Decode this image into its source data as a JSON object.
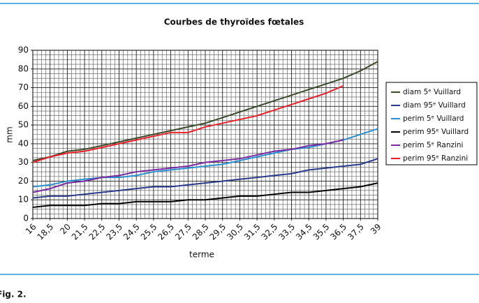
{
  "chart_data": {
    "type": "line",
    "title": "Courbes de thyroïdes fœtales",
    "x_label": "terme",
    "y_label": "mm",
    "caption": "Fig. 2.",
    "categories": [
      "16",
      "18,5",
      "20",
      "21,5",
      "22,5",
      "23,5",
      "24,5",
      "25,5",
      "26,5",
      "27,5",
      "28,5",
      "29,5",
      "30,5",
      "31,5",
      "32,5",
      "33,5",
      "34,5",
      "35,5",
      "36,5",
      "37,5",
      "39"
    ],
    "ylim": [
      0,
      90
    ],
    "yticks": [
      0,
      10,
      20,
      30,
      40,
      50,
      60,
      70,
      80,
      90
    ],
    "grid": true,
    "legend": "right",
    "series": [
      {
        "name": "diam 5ᵉ Vuillard",
        "color": "#3b4a2a",
        "values": [
          31,
          33,
          36,
          37,
          39,
          41,
          43,
          45,
          47,
          49,
          51,
          54,
          57,
          60,
          63,
          66,
          69,
          72,
          75,
          79,
          84
        ]
      },
      {
        "name": "diam 95ᵉ Vuillard",
        "color": "#2a3a8a",
        "values": [
          11,
          12,
          12,
          13,
          14,
          15,
          16,
          17,
          17,
          18,
          19,
          20,
          21,
          22,
          23,
          24,
          26,
          27,
          28,
          29,
          32
        ]
      },
      {
        "name": "perim 5ᵉ Vuillard",
        "color": "#2a8fd0",
        "values": [
          17,
          18,
          20,
          21,
          22,
          22,
          23,
          25,
          26,
          27,
          28,
          29,
          31,
          33,
          35,
          37,
          38,
          40,
          42,
          45,
          48
        ]
      },
      {
        "name": "perim 95ᵉ Vuillard",
        "color": "#000000",
        "values": [
          6,
          7,
          7,
          7,
          8,
          8,
          9,
          9,
          9,
          10,
          10,
          11,
          12,
          12,
          13,
          14,
          14,
          15,
          16,
          17,
          19
        ]
      },
      {
        "name": "perim 5ᵉ Ranzini",
        "color": "#7a2aa0",
        "values": [
          14,
          16,
          19,
          20,
          22,
          23,
          25,
          26,
          27,
          28,
          30,
          31,
          32,
          34,
          36,
          37,
          39,
          40,
          42,
          null,
          null
        ]
      },
      {
        "name": "perim 95ᵉ Ranzini",
        "color": "#e8202a",
        "values": [
          30,
          33,
          35,
          36,
          38,
          40,
          42,
          44,
          46,
          46,
          49,
          51,
          53,
          55,
          58,
          61,
          64,
          67,
          71,
          null,
          null
        ]
      }
    ]
  }
}
